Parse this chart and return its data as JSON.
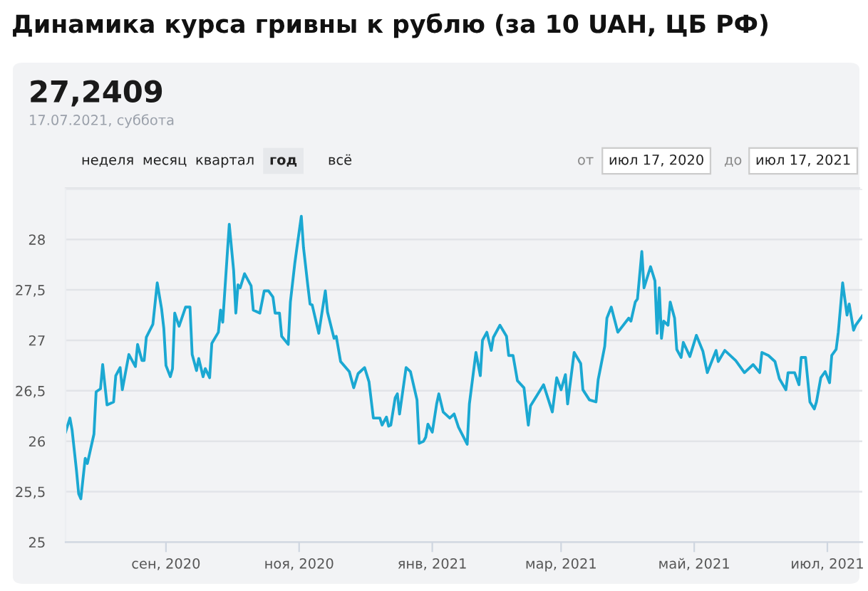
{
  "chart_data": {
    "type": "line",
    "title": "Динамика курса гривны к рублю (за 10 UAH, ЦБ РФ)",
    "annotations": [
      "27,2409",
      "17.07.2021, суббота",
      "неделя",
      "месяц",
      "квартал",
      "год",
      "всё",
      "от",
      "июл 17, 2020",
      "до",
      "июл 17, 2021"
    ],
    "series": [
      {
        "color": "#1ba8d2",
        "x": [
          "2020-07-17",
          "2020-07-19",
          "2020-07-20",
          "2020-07-22",
          "2020-07-23",
          "2020-07-24",
          "2020-07-26",
          "2020-07-27",
          "2020-07-30",
          "2020-07-31",
          "2020-08-02",
          "2020-08-03",
          "2020-08-05",
          "2020-08-08",
          "2020-08-09",
          "2020-08-11",
          "2020-08-12",
          "2020-08-15",
          "2020-08-18",
          "2020-08-19",
          "2020-08-21",
          "2020-08-22",
          "2020-08-23",
          "2020-08-26",
          "2020-08-28",
          "2020-08-30",
          "2020-08-31",
          "2020-09-01",
          "2020-09-03",
          "2020-09-04",
          "2020-09-05",
          "2020-09-07",
          "2020-09-10",
          "2020-09-12",
          "2020-09-13",
          "2020-09-15",
          "2020-09-16",
          "2020-09-18",
          "2020-09-19",
          "2020-09-21",
          "2020-09-22",
          "2020-09-25",
          "2020-09-26",
          "2020-09-27",
          "2020-09-29",
          "2020-09-30",
          "2020-10-02",
          "2020-10-03",
          "2020-10-04",
          "2020-10-05",
          "2020-10-07",
          "2020-10-10",
          "2020-10-11",
          "2020-10-14",
          "2020-10-16",
          "2020-10-18",
          "2020-10-20",
          "2020-10-21",
          "2020-10-23",
          "2020-10-24",
          "2020-10-27",
          "2020-10-28",
          "2020-10-30",
          "2020-10-31",
          "2020-11-02",
          "2020-11-03",
          "2020-11-05",
          "2020-11-06",
          "2020-11-07",
          "2020-11-10",
          "2020-11-13",
          "2020-11-14",
          "2020-11-17",
          "2020-11-18",
          "2020-11-20",
          "2020-11-24",
          "2020-11-26",
          "2020-11-28",
          "2020-12-01",
          "2020-12-03",
          "2020-12-05",
          "2020-12-08",
          "2020-12-09",
          "2020-12-11",
          "2020-12-12",
          "2020-12-13",
          "2020-12-15",
          "2020-12-16",
          "2020-12-17",
          "2020-12-20",
          "2020-12-22",
          "2020-12-25",
          "2020-12-26",
          "2020-12-28",
          "2020-12-29",
          "2020-12-30",
          "2021-01-01",
          "2021-01-03",
          "2021-01-04",
          "2021-01-06",
          "2021-01-09",
          "2021-01-11",
          "2021-01-13",
          "2021-01-17",
          "2021-01-18",
          "2021-01-21",
          "2021-01-23",
          "2021-01-24",
          "2021-01-26",
          "2021-01-28",
          "2021-01-29",
          "2021-02-01",
          "2021-02-04",
          "2021-02-05",
          "2021-02-07",
          "2021-02-09",
          "2021-02-12",
          "2021-02-14",
          "2021-02-15",
          "2021-02-21",
          "2021-02-25",
          "2021-02-27",
          "2021-03-01",
          "2021-03-03",
          "2021-03-04",
          "2021-03-07",
          "2021-03-10",
          "2021-03-11",
          "2021-03-14",
          "2021-03-17",
          "2021-03-18",
          "2021-03-21",
          "2021-03-22",
          "2021-03-24",
          "2021-03-27",
          "2021-04-01",
          "2021-04-02",
          "2021-04-04",
          "2021-04-05",
          "2021-04-07",
          "2021-04-08",
          "2021-04-11",
          "2021-04-13",
          "2021-04-14",
          "2021-04-15",
          "2021-04-16",
          "2021-04-17",
          "2021-04-19",
          "2021-04-20",
          "2021-04-22",
          "2021-04-23",
          "2021-04-25",
          "2021-04-26",
          "2021-04-29",
          "2021-05-02",
          "2021-05-05",
          "2021-05-07",
          "2021-05-11",
          "2021-05-12",
          "2021-05-15",
          "2021-05-20",
          "2021-05-24",
          "2021-05-28",
          "2021-05-31",
          "2021-06-01",
          "2021-06-04",
          "2021-06-07",
          "2021-06-09",
          "2021-06-12",
          "2021-06-13",
          "2021-06-16",
          "2021-06-18",
          "2021-06-19",
          "2021-06-21",
          "2021-06-23",
          "2021-06-25",
          "2021-06-26",
          "2021-06-28",
          "2021-06-30",
          "2021-07-02",
          "2021-07-03",
          "2021-07-05",
          "2021-07-06",
          "2021-07-08",
          "2021-07-10",
          "2021-07-11",
          "2021-07-13",
          "2021-07-14",
          "2021-07-17"
        ],
        "values": [
          26.09,
          26.23,
          26.11,
          25.71,
          25.48,
          25.43,
          25.83,
          25.78,
          26.07,
          26.49,
          26.52,
          26.76,
          26.36,
          26.39,
          26.65,
          26.73,
          26.51,
          26.86,
          26.74,
          26.96,
          26.8,
          26.8,
          27.03,
          27.16,
          27.57,
          27.31,
          27.12,
          26.75,
          26.64,
          26.72,
          27.27,
          27.14,
          27.33,
          27.33,
          26.86,
          26.7,
          26.82,
          26.64,
          26.72,
          26.63,
          26.97,
          27.08,
          27.3,
          27.18,
          27.83,
          28.15,
          27.69,
          27.27,
          27.55,
          27.52,
          27.66,
          27.54,
          27.3,
          27.27,
          27.49,
          27.49,
          27.43,
          27.27,
          27.27,
          27.04,
          26.96,
          27.38,
          27.76,
          27.92,
          28.23,
          27.92,
          27.54,
          27.36,
          27.35,
          27.07,
          27.49,
          27.28,
          27.02,
          27.04,
          26.79,
          26.69,
          26.53,
          26.67,
          26.73,
          26.59,
          26.23,
          26.23,
          26.16,
          26.24,
          26.15,
          26.16,
          26.43,
          26.47,
          26.27,
          26.73,
          26.69,
          26.41,
          25.98,
          26.0,
          26.04,
          26.17,
          26.09,
          26.37,
          26.47,
          26.29,
          26.23,
          26.27,
          26.14,
          25.97,
          26.37,
          26.88,
          26.65,
          27.0,
          27.08,
          26.9,
          27.03,
          27.15,
          27.04,
          26.85,
          26.85,
          26.6,
          26.53,
          26.16,
          26.35,
          26.56,
          26.29,
          26.63,
          26.51,
          26.66,
          26.37,
          26.88,
          26.77,
          26.51,
          26.41,
          26.39,
          26.61,
          26.94,
          27.22,
          27.33,
          27.08,
          27.22,
          27.19,
          27.38,
          27.41,
          27.88,
          27.52,
          27.73,
          27.59,
          27.07,
          27.52,
          27.02,
          27.19,
          27.15,
          27.38,
          27.22,
          26.91,
          26.83,
          26.98,
          26.84,
          27.05,
          26.89,
          26.68,
          26.9,
          26.79,
          26.9,
          26.8,
          26.68,
          26.76,
          26.68,
          26.88,
          26.85,
          26.79,
          26.62,
          26.51,
          26.68,
          26.68,
          26.56,
          26.83,
          26.83,
          26.39,
          26.32,
          26.39,
          26.63,
          26.69,
          26.58,
          26.85,
          26.91,
          27.08,
          27.57,
          27.25,
          27.36,
          27.1,
          27.15,
          27.2409
        ]
      }
    ],
    "xlim": [
      "2020-07-17",
      "2021-07-17"
    ],
    "xticks": [
      {
        "value": "2020-09-01",
        "label": "сен, 2020"
      },
      {
        "value": "2020-11-01",
        "label": "ноя, 2020"
      },
      {
        "value": "2021-01-01",
        "label": "янв, 2021"
      },
      {
        "value": "2021-03-01",
        "label": "мар, 2021"
      },
      {
        "value": "2021-05-01",
        "label": "май, 2021"
      },
      {
        "value": "2021-07-01",
        "label": "июл, 2021"
      }
    ],
    "ylim": [
      25,
      28.5
    ],
    "yticks": [
      25,
      {
        "value": 25.5,
        "label": "25,5"
      },
      26,
      {
        "value": 26.5,
        "label": "26,5"
      },
      27,
      {
        "value": 27.5,
        "label": "27,5"
      },
      28,
      {
        "value": 28.5,
        "label": null
      }
    ],
    "grid": "y",
    "marker": "none",
    "line_style": "solid"
  }
}
